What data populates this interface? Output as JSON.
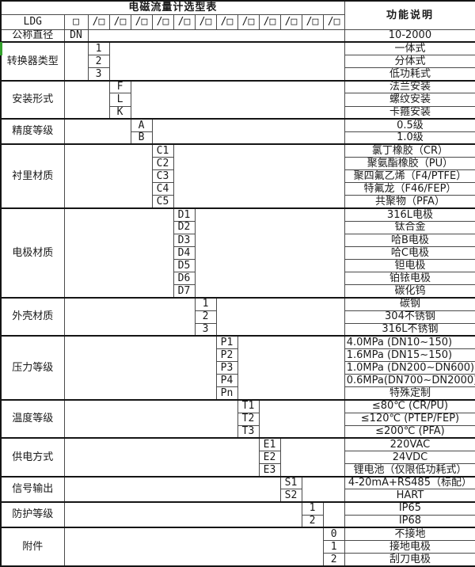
{
  "title": "电磁流量计选型表",
  "function_header": "功能说明",
  "model_row": {
    "prefix": "LDG",
    "first_box": "□",
    "code_box": "/□",
    "code_box_count": 12
  },
  "diameter_row": {
    "label": "公称直径",
    "code": "DN",
    "description": "10-2000"
  },
  "blocks": [
    {
      "id": "converter-type",
      "label": "转换器类型",
      "col": 1,
      "options": [
        {
          "code": "1",
          "desc": "一体式"
        },
        {
          "code": "2",
          "desc": "分体式"
        },
        {
          "code": "3",
          "desc": "低功耗式"
        }
      ]
    },
    {
      "id": "installation-type",
      "label": "安装形式",
      "col": 2,
      "options": [
        {
          "code": "F",
          "desc": "法兰安装"
        },
        {
          "code": "L",
          "desc": "螺纹安装"
        },
        {
          "code": "K",
          "desc": "卡箍安装"
        }
      ]
    },
    {
      "id": "accuracy-class",
      "label": "精度等级",
      "col": 3,
      "options": [
        {
          "code": "A",
          "desc": "0.5级"
        },
        {
          "code": "B",
          "desc": "1.0级"
        }
      ]
    },
    {
      "id": "lining-material",
      "label": "衬里材质",
      "col": 4,
      "options": [
        {
          "code": "C1",
          "desc": "氯丁橡胶（CR）"
        },
        {
          "code": "C2",
          "desc": "聚氨酯橡胶（PU）"
        },
        {
          "code": "C3",
          "desc": "聚四氟乙烯（F4/PTFE）"
        },
        {
          "code": "C4",
          "desc": "特氟龙（F46/FEP）"
        },
        {
          "code": "C5",
          "desc": "共聚物（PFA）"
        }
      ]
    },
    {
      "id": "electrode-material",
      "label": "电极材质",
      "col": 5,
      "options": [
        {
          "code": "D1",
          "desc": "316L电极"
        },
        {
          "code": "D2",
          "desc": "钛合金"
        },
        {
          "code": "D3",
          "desc": "哈B电极"
        },
        {
          "code": "D4",
          "desc": "哈C电极"
        },
        {
          "code": "D5",
          "desc": "钽电极"
        },
        {
          "code": "D6",
          "desc": "铂铱电极"
        },
        {
          "code": "D7",
          "desc": "碳化钨"
        }
      ]
    },
    {
      "id": "housing-material",
      "label": "外壳材质",
      "col": 6,
      "options": [
        {
          "code": "1",
          "desc": "碳钢"
        },
        {
          "code": "2",
          "desc": "304不锈钢"
        },
        {
          "code": "3",
          "desc": "316L不锈钢"
        }
      ]
    },
    {
      "id": "pressure-class",
      "label": "压力等级",
      "col": 7,
      "options": [
        {
          "code": "P1",
          "desc": "4.0MPa (DN10~150)",
          "align": "left"
        },
        {
          "code": "P2",
          "desc": "1.6MPa (DN15~150)",
          "align": "left"
        },
        {
          "code": "P3",
          "desc": "1.0MPa (DN200~DN600)",
          "align": "left"
        },
        {
          "code": "P4",
          "desc": "0.6MPa(DN700~DN2000)",
          "align": "left"
        },
        {
          "code": "Pn",
          "desc": "特殊定制"
        }
      ]
    },
    {
      "id": "temperature-class",
      "label": "温度等级",
      "col": 8,
      "options": [
        {
          "code": "T1",
          "desc": "≤80℃ (CR/PU)"
        },
        {
          "code": "T2",
          "desc": "≤120℃ (PTEP/FEP)"
        },
        {
          "code": "T3",
          "desc": "≤200℃ (PFA)"
        }
      ]
    },
    {
      "id": "power-supply",
      "label": "供电方式",
      "col": 9,
      "options": [
        {
          "code": "E1",
          "desc": "220VAC"
        },
        {
          "code": "E2",
          "desc": "24VDC"
        },
        {
          "code": "E3",
          "desc": "锂电池（仅限低功耗式）"
        }
      ]
    },
    {
      "id": "signal-output",
      "label": "信号输出",
      "col": 10,
      "options": [
        {
          "code": "S1",
          "desc": "4-20mA+RS485（标配）"
        },
        {
          "code": "S2",
          "desc": "HART"
        }
      ]
    },
    {
      "id": "protection-class",
      "label": "防护等级",
      "col": 11,
      "options": [
        {
          "code": "1",
          "desc": "IP65"
        },
        {
          "code": "2",
          "desc": "IP68"
        }
      ]
    },
    {
      "id": "accessories",
      "label": "附件",
      "col": 12,
      "options": [
        {
          "code": "0",
          "desc": "不接地"
        },
        {
          "code": "1",
          "desc": "接地电极"
        },
        {
          "code": "2",
          "desc": "刮刀电极"
        }
      ]
    }
  ],
  "layout_cols": {
    "code_columns": 12
  },
  "accent": {
    "marker_color": "#33a02c"
  }
}
